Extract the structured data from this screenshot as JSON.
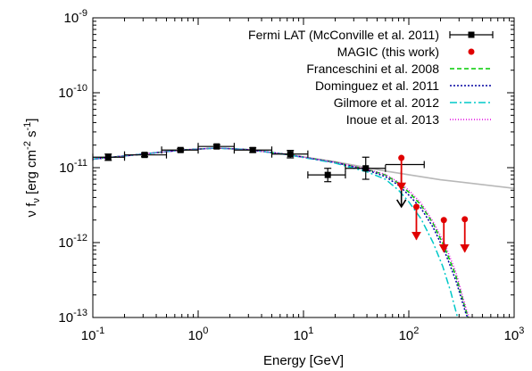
{
  "chart_data": {
    "type": "scatter",
    "xlabel": "Energy [GeV]",
    "ylabel": {
      "base": "ν f",
      "sub": "ν",
      "pre": " [erg cm",
      "sup1": "-2",
      "mid": " s",
      "sup2": "-1",
      "post": "]"
    },
    "xscale": "log",
    "yscale": "log",
    "xlim": [
      0.1,
      1000
    ],
    "ylim": [
      1e-13,
      1e-09
    ],
    "x_ticks": [
      {
        "value": 0.1,
        "base": "10",
        "exp": "-1"
      },
      {
        "value": 1,
        "base": "10",
        "exp": "0"
      },
      {
        "value": 10,
        "base": "10",
        "exp": "1"
      },
      {
        "value": 100,
        "base": "10",
        "exp": "2"
      },
      {
        "value": 1000,
        "base": "10",
        "exp": "3"
      }
    ],
    "y_ticks": [
      {
        "value": 1e-13,
        "base": "10",
        "exp": "-13"
      },
      {
        "value": 1e-12,
        "base": "10",
        "exp": "-12"
      },
      {
        "value": 1e-11,
        "base": "10",
        "exp": "-11"
      },
      {
        "value": 1e-10,
        "base": "10",
        "exp": "-10"
      },
      {
        "value": 1e-09,
        "base": "10",
        "exp": "-9"
      }
    ],
    "legend_position": "top-right",
    "legend": [
      {
        "label": "Fermi LAT (McConville et al. 2011)",
        "style": "errorbar",
        "color": "#000000"
      },
      {
        "label": "MAGIC (this work)",
        "style": "dot",
        "color": "#e00000"
      },
      {
        "label": "Franceschini et al. 2008",
        "style": "line",
        "color": "#00cc00",
        "dash": "5,3"
      },
      {
        "label": "Dominguez et al. 2011",
        "style": "line",
        "color": "#0000a0",
        "dash": "2,2"
      },
      {
        "label": "Gilmore et al. 2012",
        "style": "line",
        "color": "#00c8c8",
        "dash": "8,3,2,3"
      },
      {
        "label": "Inoue et al. 2013",
        "style": "line",
        "color": "#e000e0",
        "dash": "1,2"
      }
    ],
    "fermi_points": [
      {
        "x": 0.14,
        "y": 1.38e-11,
        "xlo": 0.1,
        "xhi": 0.2,
        "ylo": 1.25e-11,
        "yhi": 1.52e-11
      },
      {
        "x": 0.31,
        "y": 1.48e-11,
        "xlo": 0.2,
        "xhi": 0.5,
        "ylo": 1.4e-11,
        "yhi": 1.56e-11
      },
      {
        "x": 0.68,
        "y": 1.72e-11,
        "xlo": 0.45,
        "xhi": 1.0,
        "ylo": 1.64e-11,
        "yhi": 1.8e-11
      },
      {
        "x": 1.5,
        "y": 1.92e-11,
        "xlo": 1.0,
        "xhi": 2.2,
        "ylo": 1.82e-11,
        "yhi": 2.02e-11
      },
      {
        "x": 3.3,
        "y": 1.72e-11,
        "xlo": 2.2,
        "xhi": 5.0,
        "ylo": 1.6e-11,
        "yhi": 1.84e-11
      },
      {
        "x": 7.5,
        "y": 1.52e-11,
        "xlo": 5.0,
        "xhi": 11.0,
        "ylo": 1.35e-11,
        "yhi": 1.7e-11
      },
      {
        "x": 17.0,
        "y": 8e-12,
        "xlo": 11.0,
        "xhi": 25.0,
        "ylo": 6.5e-12,
        "yhi": 9.8e-12
      },
      {
        "x": 39.0,
        "y": 9.8e-12,
        "xlo": 25.0,
        "xhi": 60.0,
        "ylo": 7e-12,
        "yhi": 1.38e-11
      }
    ],
    "fermi_segment": {
      "x1": 60.0,
      "x2": 140.0,
      "y": 1.1e-11
    },
    "fermi_upper_limit": {
      "x": 85.0,
      "y": 9e-12,
      "y_end": 3e-12
    },
    "magic_upper_limits": [
      {
        "x": 85.0,
        "y": 1.35e-11,
        "y_end": 5e-12
      },
      {
        "x": 118.0,
        "y": 3e-12,
        "y_end": 1.1e-12
      },
      {
        "x": 215.0,
        "y": 2e-12,
        "y_end": 7.5e-13
      },
      {
        "x": 340.0,
        "y": 2.05e-12,
        "y_end": 7.5e-13
      }
    ],
    "intrinsic_line": {
      "color": "#b8b8b8",
      "points": [
        [
          0.1,
          1.3e-11
        ],
        [
          0.3,
          1.52e-11
        ],
        [
          0.7,
          1.72e-11
        ],
        [
          1.5,
          1.83e-11
        ],
        [
          3,
          1.74e-11
        ],
        [
          7,
          1.5e-11
        ],
        [
          20,
          1.2e-11
        ],
        [
          60,
          9e-12
        ],
        [
          200,
          6.9e-12
        ],
        [
          1000,
          5.3e-12
        ]
      ]
    },
    "models": [
      {
        "name": "Franceschini et al. 2008",
        "points": [
          [
            0.1,
            1.3e-11
          ],
          [
            0.3,
            1.52e-11
          ],
          [
            0.7,
            1.72e-11
          ],
          [
            1.5,
            1.83e-11
          ],
          [
            3,
            1.74e-11
          ],
          [
            7,
            1.5e-11
          ],
          [
            20,
            1.18e-11
          ],
          [
            40,
            9.5e-12
          ],
          [
            60,
            8e-12
          ],
          [
            80,
            6.2e-12
          ],
          [
            100,
            4.7e-12
          ],
          [
            130,
            3.2e-12
          ],
          [
            170,
            1.8e-12
          ],
          [
            220,
            8.5e-13
          ],
          [
            280,
            3.6e-13
          ],
          [
            340,
            1.4e-13
          ],
          [
            370,
            9.5e-14
          ]
        ]
      },
      {
        "name": "Dominguez et al. 2011",
        "points": [
          [
            0.1,
            1.3e-11
          ],
          [
            0.3,
            1.52e-11
          ],
          [
            0.7,
            1.72e-11
          ],
          [
            1.5,
            1.83e-11
          ],
          [
            3,
            1.74e-11
          ],
          [
            7,
            1.5e-11
          ],
          [
            20,
            1.17e-11
          ],
          [
            40,
            9.3e-12
          ],
          [
            60,
            7.6e-12
          ],
          [
            80,
            5.8e-12
          ],
          [
            100,
            4.3e-12
          ],
          [
            130,
            2.9e-12
          ],
          [
            170,
            1.6e-12
          ],
          [
            220,
            7.5e-13
          ],
          [
            280,
            3.1e-13
          ],
          [
            350,
            1.1e-13
          ],
          [
            370,
            9.5e-14
          ]
        ]
      },
      {
        "name": "Gilmore et al. 2012",
        "points": [
          [
            0.1,
            1.3e-11
          ],
          [
            0.3,
            1.52e-11
          ],
          [
            0.7,
            1.72e-11
          ],
          [
            1.5,
            1.83e-11
          ],
          [
            3,
            1.74e-11
          ],
          [
            7,
            1.49e-11
          ],
          [
            20,
            1.15e-11
          ],
          [
            40,
            8.8e-12
          ],
          [
            60,
            7e-12
          ],
          [
            80,
            5e-12
          ],
          [
            100,
            3.5e-12
          ],
          [
            130,
            2.1e-12
          ],
          [
            170,
            1e-12
          ],
          [
            210,
            4.8e-13
          ],
          [
            250,
            2.2e-13
          ],
          [
            290,
            1e-13
          ],
          [
            300,
            9.5e-14
          ]
        ]
      },
      {
        "name": "Inoue et al. 2013",
        "points": [
          [
            0.1,
            1.3e-11
          ],
          [
            0.3,
            1.52e-11
          ],
          [
            0.7,
            1.72e-11
          ],
          [
            1.5,
            1.83e-11
          ],
          [
            3,
            1.74e-11
          ],
          [
            7,
            1.5e-11
          ],
          [
            20,
            1.18e-11
          ],
          [
            40,
            9.6e-12
          ],
          [
            60,
            8.1e-12
          ],
          [
            80,
            6.4e-12
          ],
          [
            100,
            5e-12
          ],
          [
            130,
            3.4e-12
          ],
          [
            170,
            1.9e-12
          ],
          [
            220,
            9.5e-13
          ],
          [
            280,
            4e-13
          ],
          [
            350,
            1.3e-13
          ],
          [
            380,
            9.5e-14
          ]
        ]
      }
    ]
  }
}
